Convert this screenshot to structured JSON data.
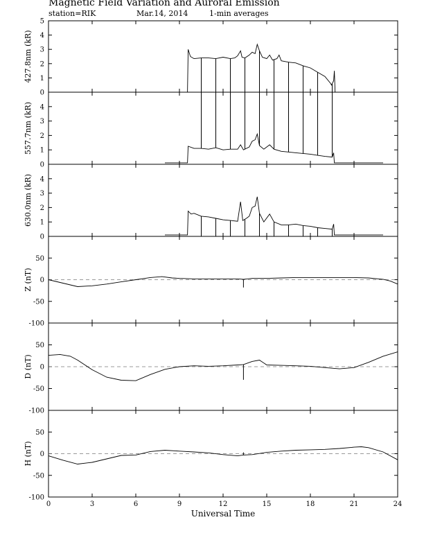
{
  "header": {
    "title": "Magnetic Field Variation and Auroral Emission",
    "station": "station=RIK",
    "date": "Mar.14, 2014",
    "averaging": "1-min averages"
  },
  "chart_data": [
    {
      "type": "line",
      "ylabel": "427.8nm (kR)",
      "ylim": [
        0,
        5
      ],
      "yticks": [
        0,
        1,
        2,
        3,
        4,
        5
      ],
      "series": [
        {
          "segments": [
            [
              [
                0,
                0
              ],
              [
                9.55,
                0
              ],
              [
                9.6,
                3.0
              ],
              [
                9.75,
                2.5
              ],
              [
                10.0,
                2.35
              ],
              [
                10.5,
                2.4
              ],
              [
                11.0,
                2.4
              ],
              [
                11.5,
                2.35
              ],
              [
                12.0,
                2.45
              ],
              [
                12.5,
                2.35
              ],
              [
                12.8,
                2.4
              ],
              [
                13.0,
                2.55
              ],
              [
                13.2,
                2.9
              ],
              [
                13.3,
                2.45
              ],
              [
                13.5,
                2.4
              ],
              [
                13.8,
                2.6
              ],
              [
                14.0,
                2.8
              ],
              [
                14.2,
                2.7
              ],
              [
                14.35,
                3.35
              ],
              [
                14.5,
                2.9
              ],
              [
                14.7,
                2.45
              ],
              [
                15.0,
                2.35
              ],
              [
                15.2,
                2.6
              ],
              [
                15.4,
                2.25
              ],
              [
                15.7,
                2.35
              ],
              [
                15.85,
                2.6
              ],
              [
                16.0,
                2.2
              ],
              [
                16.5,
                2.1
              ],
              [
                17.0,
                2.05
              ],
              [
                17.5,
                1.85
              ],
              [
                18.0,
                1.7
              ],
              [
                18.5,
                1.4
              ],
              [
                19.0,
                1.1
              ],
              [
                19.4,
                0.6
              ],
              [
                19.45,
                0.5
              ],
              [
                19.6,
                0.8
              ],
              [
                19.65,
                1.5
              ],
              [
                19.7,
                0.0
              ],
              [
                24,
                0
              ]
            ]
          ]
        }
      ],
      "spikes": {
        "x": [
          10.5,
          11.5,
          12.5,
          13.5,
          14.5,
          15.5,
          16.5,
          17.5,
          18.5,
          19.5
        ],
        "values": [
          0,
          0,
          0,
          0,
          0,
          0,
          0,
          0,
          0,
          0
        ]
      }
    },
    {
      "type": "line",
      "ylabel": "557.7nm (kR)",
      "ylim": [
        0,
        5
      ],
      "yticks": [
        0,
        1,
        2,
        3,
        4
      ],
      "series": [
        {
          "segments": [
            [
              [
                8.0,
                0.1
              ],
              [
                9.55,
                0.1
              ],
              [
                9.6,
                1.25
              ],
              [
                10.0,
                1.1
              ],
              [
                10.5,
                1.1
              ],
              [
                11.0,
                1.05
              ],
              [
                11.5,
                1.15
              ],
              [
                12.0,
                1.0
              ],
              [
                12.5,
                1.05
              ],
              [
                13.0,
                1.05
              ],
              [
                13.2,
                1.35
              ],
              [
                13.4,
                1.0
              ],
              [
                13.8,
                1.2
              ],
              [
                14.0,
                1.6
              ],
              [
                14.2,
                1.7
              ],
              [
                14.35,
                2.1
              ],
              [
                14.5,
                1.3
              ],
              [
                14.8,
                1.05
              ],
              [
                15.2,
                1.35
              ],
              [
                15.5,
                1.05
              ],
              [
                16.0,
                0.9
              ],
              [
                16.5,
                0.85
              ],
              [
                17.0,
                0.8
              ],
              [
                17.5,
                0.75
              ],
              [
                18.0,
                0.7
              ],
              [
                18.5,
                0.62
              ],
              [
                19.0,
                0.55
              ],
              [
                19.5,
                0.5
              ],
              [
                19.6,
                0.8
              ],
              [
                19.65,
                0.1
              ],
              [
                23.0,
                0.1
              ]
            ]
          ]
        }
      ],
      "spikes": {
        "x": [
          10.5,
          11.5,
          12.5,
          13.5,
          14.5,
          15.5,
          16.5,
          17.5,
          18.5,
          19.5
        ],
        "values": [
          5,
          5,
          5,
          5,
          5,
          5,
          5,
          5,
          5,
          5
        ]
      }
    },
    {
      "type": "line",
      "ylabel": "630.0nm (kR)",
      "ylim": [
        0,
        5
      ],
      "yticks": [
        0,
        1,
        2,
        3,
        4
      ],
      "series": [
        {
          "segments": [
            [
              [
                8.0,
                0.1
              ],
              [
                9.55,
                0.1
              ],
              [
                9.6,
                1.75
              ],
              [
                9.8,
                1.55
              ],
              [
                10.0,
                1.6
              ],
              [
                10.5,
                1.4
              ],
              [
                11.0,
                1.35
              ],
              [
                11.5,
                1.25
              ],
              [
                12.0,
                1.15
              ],
              [
                12.5,
                1.1
              ],
              [
                13.0,
                1.05
              ],
              [
                13.2,
                2.4
              ],
              [
                13.35,
                1.1
              ],
              [
                13.6,
                1.25
              ],
              [
                13.8,
                1.4
              ],
              [
                14.0,
                2.0
              ],
              [
                14.2,
                2.1
              ],
              [
                14.35,
                2.75
              ],
              [
                14.5,
                1.6
              ],
              [
                14.8,
                1.0
              ],
              [
                15.2,
                1.55
              ],
              [
                15.5,
                1.0
              ],
              [
                16.0,
                0.8
              ],
              [
                16.5,
                0.8
              ],
              [
                17.0,
                0.85
              ],
              [
                17.5,
                0.75
              ],
              [
                18.0,
                0.7
              ],
              [
                18.5,
                0.6
              ],
              [
                19.0,
                0.55
              ],
              [
                19.5,
                0.5
              ],
              [
                19.6,
                0.85
              ],
              [
                19.65,
                0.1
              ],
              [
                23.0,
                0.1
              ]
            ]
          ]
        }
      ],
      "spikes": {
        "x": [
          10.5,
          11.5,
          12.5,
          13.5,
          14.5,
          15.5,
          16.5,
          17.5,
          18.5,
          19.5
        ],
        "values": [
          0,
          0,
          0,
          0,
          0,
          0,
          0,
          0,
          0,
          0
        ]
      }
    },
    {
      "type": "line",
      "ylabel": "Z (nT)",
      "ylim": [
        -100,
        100
      ],
      "yticks": [
        -100,
        -50,
        0,
        50
      ],
      "series": [
        {
          "segments": [
            [
              [
                0,
                0
              ],
              [
                1,
                -8
              ],
              [
                2,
                -16
              ],
              [
                3,
                -14
              ],
              [
                4,
                -10
              ],
              [
                5,
                -5
              ],
              [
                6,
                0
              ],
              [
                7,
                5
              ],
              [
                7.8,
                7
              ],
              [
                8.5,
                4
              ],
              [
                9,
                3
              ],
              [
                10,
                2
              ],
              [
                11,
                2
              ],
              [
                12,
                2
              ],
              [
                13,
                2
              ],
              [
                13.4,
                1
              ],
              [
                14,
                3
              ],
              [
                15,
                3
              ],
              [
                16,
                4
              ],
              [
                17,
                5
              ],
              [
                18,
                5
              ],
              [
                19,
                5
              ],
              [
                20,
                5
              ],
              [
                21,
                5
              ],
              [
                22,
                4
              ],
              [
                23,
                1
              ],
              [
                23.5,
                -3
              ],
              [
                24,
                -10
              ]
            ]
          ]
        }
      ],
      "spikes": {
        "x": [
          13.4
        ],
        "values": [
          -18
        ]
      }
    },
    {
      "type": "line",
      "ylabel": "D (nT)",
      "ylim": [
        -100,
        100
      ],
      "yticks": [
        -100,
        -50,
        0,
        50
      ],
      "series": [
        {
          "segments": [
            [
              [
                0,
                26
              ],
              [
                0.8,
                28
              ],
              [
                1.5,
                24
              ],
              [
                2.0,
                15
              ],
              [
                3,
                -7
              ],
              [
                4,
                -24
              ],
              [
                5,
                -31
              ],
              [
                6,
                -32
              ],
              [
                7,
                -18
              ],
              [
                8,
                -6
              ],
              [
                9,
                0
              ],
              [
                10,
                2
              ],
              [
                11,
                1
              ],
              [
                12,
                2
              ],
              [
                13,
                4
              ],
              [
                13.4,
                5
              ],
              [
                14,
                12
              ],
              [
                14.5,
                15
              ],
              [
                15,
                4
              ],
              [
                16,
                3
              ],
              [
                17,
                2
              ],
              [
                18,
                1
              ],
              [
                19,
                -2
              ],
              [
                20,
                -5
              ],
              [
                21,
                -2
              ],
              [
                22,
                10
              ],
              [
                23,
                24
              ],
              [
                24,
                34
              ]
            ]
          ]
        }
      ],
      "spikes": {
        "x": [
          13.4
        ],
        "values": [
          -30
        ]
      }
    },
    {
      "type": "line",
      "ylabel": "H (nT)",
      "ylim": [
        -100,
        100
      ],
      "yticks": [
        -100,
        -50,
        0,
        50
      ],
      "series": [
        {
          "segments": [
            [
              [
                0,
                -5
              ],
              [
                1,
                -15
              ],
              [
                2,
                -24
              ],
              [
                3,
                -20
              ],
              [
                4,
                -12
              ],
              [
                5,
                -4
              ],
              [
                6,
                -3
              ],
              [
                7,
                5
              ],
              [
                8,
                8
              ],
              [
                9,
                6
              ],
              [
                10,
                4
              ],
              [
                11,
                2
              ],
              [
                12,
                -2
              ],
              [
                13,
                -5
              ],
              [
                13.4,
                -3
              ],
              [
                14,
                -2
              ],
              [
                15,
                3
              ],
              [
                16,
                6
              ],
              [
                17,
                8
              ],
              [
                18,
                9
              ],
              [
                19,
                10
              ],
              [
                20,
                12
              ],
              [
                21,
                15
              ],
              [
                21.5,
                16
              ],
              [
                22,
                14
              ],
              [
                23,
                4
              ],
              [
                24,
                -14
              ]
            ]
          ]
        }
      ],
      "spikes": {
        "x": [
          13.4
        ],
        "values": [
          3
        ]
      }
    }
  ],
  "x_axis": {
    "label": "Universal Time",
    "range": [
      0,
      24
    ],
    "ticks": [
      0,
      3,
      6,
      9,
      12,
      15,
      18,
      21,
      24
    ]
  }
}
